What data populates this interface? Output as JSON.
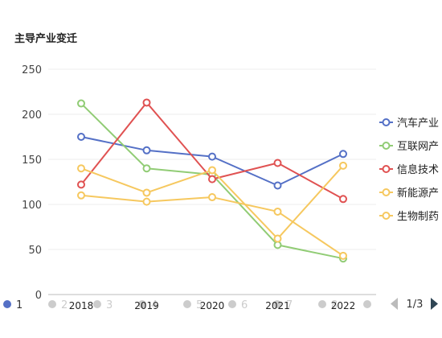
{
  "chart_data": {
    "type": "line",
    "title": "主导产业变迁",
    "xlabel": "",
    "ylabel": "",
    "ylim": [
      0,
      250
    ],
    "yticks": [
      0,
      50,
      100,
      150,
      200,
      250
    ],
    "x": [
      "2018",
      "2019",
      "2020",
      "2021",
      "2022"
    ],
    "grid": true,
    "legend_position": "right",
    "series": [
      {
        "name": "汽车产业",
        "color": "#5470c6",
        "values": [
          175,
          160,
          153,
          121,
          156
        ]
      },
      {
        "name": "互联网产",
        "color": "#91cc75",
        "values": [
          212,
          140,
          133,
          55,
          40
        ]
      },
      {
        "name": "信息技术",
        "color": "#e05252",
        "values": [
          122,
          213,
          128,
          146,
          106
        ]
      },
      {
        "name": "新能源产",
        "color": "#f6c85f",
        "values": [
          140,
          113,
          138,
          62,
          143
        ]
      },
      {
        "name": "生物制药",
        "color": "#f6c85f",
        "values": [
          110,
          103,
          108,
          92,
          43
        ]
      }
    ]
  },
  "bottom_pager": {
    "pages": [
      "1",
      "2",
      "3",
      "4",
      "5",
      "6",
      "7",
      "8"
    ],
    "active_index": 0,
    "active_color": "#5470c6",
    "inactive_color": "#cccccc"
  },
  "legend_pager": {
    "label": "1/3",
    "prev_icon": "triangle-left-icon",
    "next_icon": "triangle-right-icon"
  }
}
